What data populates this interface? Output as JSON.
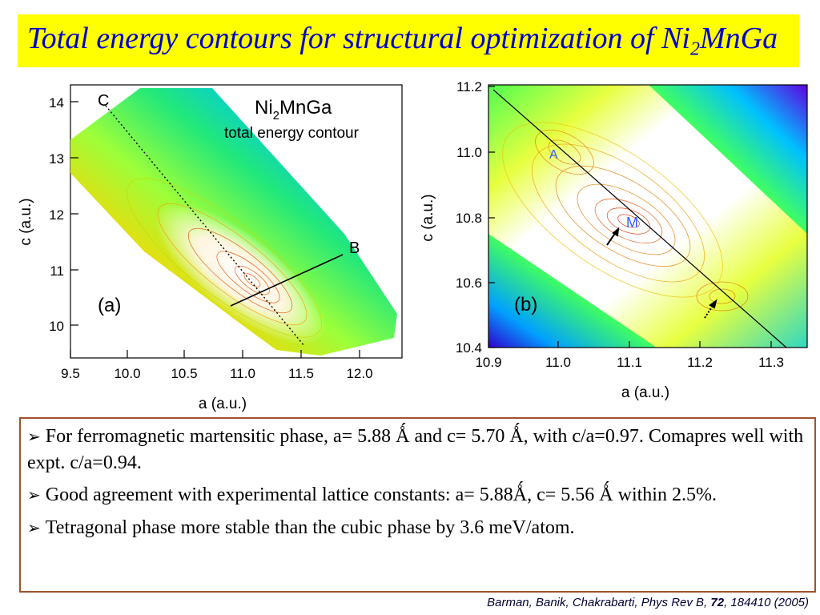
{
  "title": {
    "text_main": "Total energy contours for structural optimization of Ni",
    "text_sub": "2",
    "text_end": "MnGa"
  },
  "panel_a": {
    "compound_main": "Ni",
    "compound_sub": "2",
    "compound_end": "MnGa",
    "subtitle": "total energy contour",
    "label": "(a)",
    "point_c": "C",
    "point_b": "B",
    "xlabel": "a (a.u.)",
    "ylabel": "c (a.u.)",
    "xticks": [
      "9.5",
      "10.0",
      "10.5",
      "11.0",
      "11.5",
      "12.0"
    ],
    "yticks": [
      "14",
      "13",
      "12",
      "11",
      "10"
    ]
  },
  "panel_b": {
    "label": "(b)",
    "point_a": "A",
    "point_m": "M",
    "xlabel": "a (a.u.)",
    "ylabel": "c (a.u.)",
    "xticks": [
      "10.9",
      "11.0",
      "11.1",
      "11.2",
      "11.3"
    ],
    "yticks": [
      "11.2",
      "11.0",
      "10.8",
      "10.6",
      "10.4"
    ]
  },
  "bullets": [
    "For ferromagnetic martensitic phase,  a= 5.88 Ǻ and  c= 5.70 Ǻ, with c/a=0.97. Comapres well with expt. c/a=0.94.",
    "Good agreement with experimental lattice constants: a=  5.88Ǻ, c= 5.56 Ǻ within 2.5%.",
    "Tetragonal phase more stable than the cubic phase by 3.6 meV/atom."
  ],
  "bullet_marker": "➢",
  "citation": {
    "authors": "Barman, Banik, Chakrabarti, Phys Rev B, ",
    "volume": "72",
    "rest": ", 184410 (2005)"
  },
  "colors": {
    "title_bg": "#ffff00",
    "title_text": "#0000cc",
    "box_border": "#a0522d"
  }
}
